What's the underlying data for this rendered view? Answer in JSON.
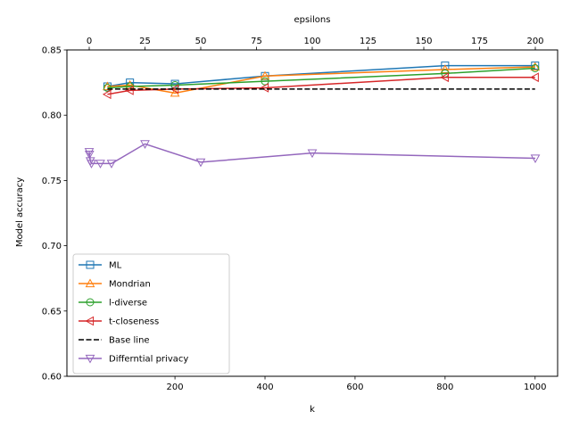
{
  "chart_data": {
    "type": "line",
    "xlabel": "k",
    "ylabel": "Model accuracy",
    "x2label": "epsilons",
    "xlim": [
      -40,
      1050
    ],
    "ylim": [
      0.6,
      0.85
    ],
    "x2lim": [
      -10,
      210
    ],
    "xticks": [
      200,
      400,
      600,
      800,
      1000
    ],
    "yticks": [
      0.6,
      0.65,
      0.7,
      0.75,
      0.8,
      0.85
    ],
    "x2ticks": [
      0,
      25,
      50,
      75,
      100,
      125,
      150,
      175,
      200
    ],
    "xtick_labels": [
      "200",
      "400",
      "600",
      "800",
      "1000"
    ],
    "ytick_labels": [
      "0.60",
      "0.65",
      "0.70",
      "0.75",
      "0.80",
      "0.85"
    ],
    "x2tick_labels": [
      "0",
      "25",
      "50",
      "75",
      "100",
      "125",
      "150",
      "175",
      "200"
    ],
    "grid": false,
    "legend_position": "lower-left",
    "series": [
      {
        "name": "ML",
        "color": "#1f77b4",
        "marker": "square",
        "axis": "k",
        "x": [
          50,
          100,
          200,
          400,
          800,
          1000
        ],
        "y": [
          0.822,
          0.825,
          0.824,
          0.83,
          0.838,
          0.838
        ]
      },
      {
        "name": "Mondrian",
        "color": "#ff7f0e",
        "marker": "triangle-up",
        "axis": "k",
        "x": [
          50,
          100,
          200,
          400,
          800,
          1000
        ],
        "y": [
          0.822,
          0.823,
          0.817,
          0.83,
          0.835,
          0.837
        ]
      },
      {
        "name": "l-diverse",
        "color": "#2ca02c",
        "marker": "circle",
        "axis": "k",
        "x": [
          50,
          100,
          200,
          400,
          800,
          1000
        ],
        "y": [
          0.821,
          0.822,
          0.823,
          0.826,
          0.832,
          0.836
        ]
      },
      {
        "name": "t-closeness",
        "color": "#d62728",
        "marker": "triangle-left",
        "axis": "k",
        "x": [
          50,
          100,
          200,
          400,
          800,
          1000
        ],
        "y": [
          0.816,
          0.819,
          0.82,
          0.821,
          0.829,
          0.829
        ]
      },
      {
        "name": "Base line",
        "color": "#000000",
        "marker": "none",
        "dashed": true,
        "axis": "k",
        "x": [
          50,
          1000
        ],
        "y": [
          0.82,
          0.82
        ]
      },
      {
        "name": "Differntial privacy",
        "color": "#9467bd",
        "marker": "triangle-down",
        "axis": "epsilons",
        "x": [
          0,
          0.1,
          0.5,
          1,
          5,
          10,
          25,
          50,
          100,
          200
        ],
        "y": [
          0.772,
          0.77,
          0.765,
          0.763,
          0.763,
          0.763,
          0.778,
          0.764,
          0.771,
          0.767
        ]
      }
    ]
  }
}
